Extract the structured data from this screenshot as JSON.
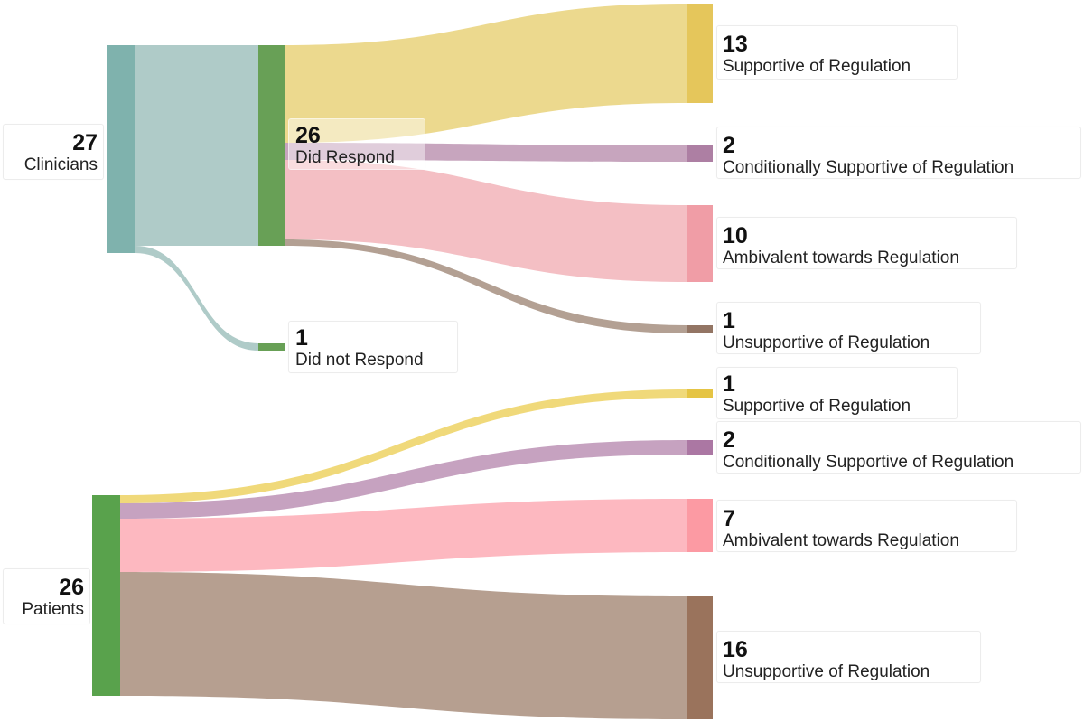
{
  "diagram": {
    "type": "sankey",
    "groups": [
      {
        "id": "clinicians",
        "source": {
          "count": "27",
          "label": "Clinicians"
        },
        "response_split": [
          {
            "id": "did_respond",
            "count": "26",
            "label": "Did Respond"
          },
          {
            "id": "did_not_respond",
            "count": "1",
            "label": "Did not Respond"
          }
        ],
        "outcomes": [
          {
            "count": "13",
            "label": "Supportive of Regulation",
            "flow_color": "#ecd98e",
            "node_color": "#e5c65b"
          },
          {
            "count": "2",
            "label": "Conditionally Supportive of Regulation",
            "flow_color": "#c7a5be",
            "node_color": "#ad7fa3"
          },
          {
            "count": "10",
            "label": "Ambivalent towards Regulation",
            "flow_color": "#f4bfc4",
            "node_color": "#f09da6"
          },
          {
            "count": "1",
            "label": "Unsupportive of Regulation",
            "flow_color": "#b3a093",
            "node_color": "#937564"
          }
        ]
      },
      {
        "id": "patients",
        "source": {
          "count": "26",
          "label": "Patients"
        },
        "outcomes": [
          {
            "count": "1",
            "label": "Supportive of Regulation",
            "flow_color": "#f0d97a",
            "node_color": "#e5c444"
          },
          {
            "count": "2",
            "label": "Conditionally Supportive of Regulation",
            "flow_color": "#c6a2c0",
            "node_color": "#ab77a3"
          },
          {
            "count": "7",
            "label": "Ambivalent towards Regulation",
            "flow_color": "#fdb8c0",
            "node_color": "#fc9aa3"
          },
          {
            "count": "16",
            "label": "Unsupportive of Regulation",
            "flow_color": "#b69f90",
            "node_color": "#9a735c"
          }
        ]
      }
    ],
    "colors": {
      "clinicians_node": "#7fb2ad",
      "clinicians_flow": "#afcbc8",
      "response_node": "#68a056",
      "patients_node": "#59a24c"
    }
  }
}
